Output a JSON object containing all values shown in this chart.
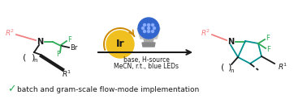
{
  "bg_color": "#ffffff",
  "check_color": "#2db05c",
  "pink_color": "#f08080",
  "green_color": "#2daa55",
  "teal_color": "#009090",
  "dark_color": "#1a1a1a",
  "ir_yellow": "#f0c020",
  "ir_text": "Ir",
  "arrow_text1": "base, H-source",
  "arrow_text2": "MeCN, r.t., blue LEDs",
  "bottom_text": "batch and gram-scale flow-mode implementation",
  "figsize": [
    3.78,
    1.23
  ],
  "dpi": 100
}
